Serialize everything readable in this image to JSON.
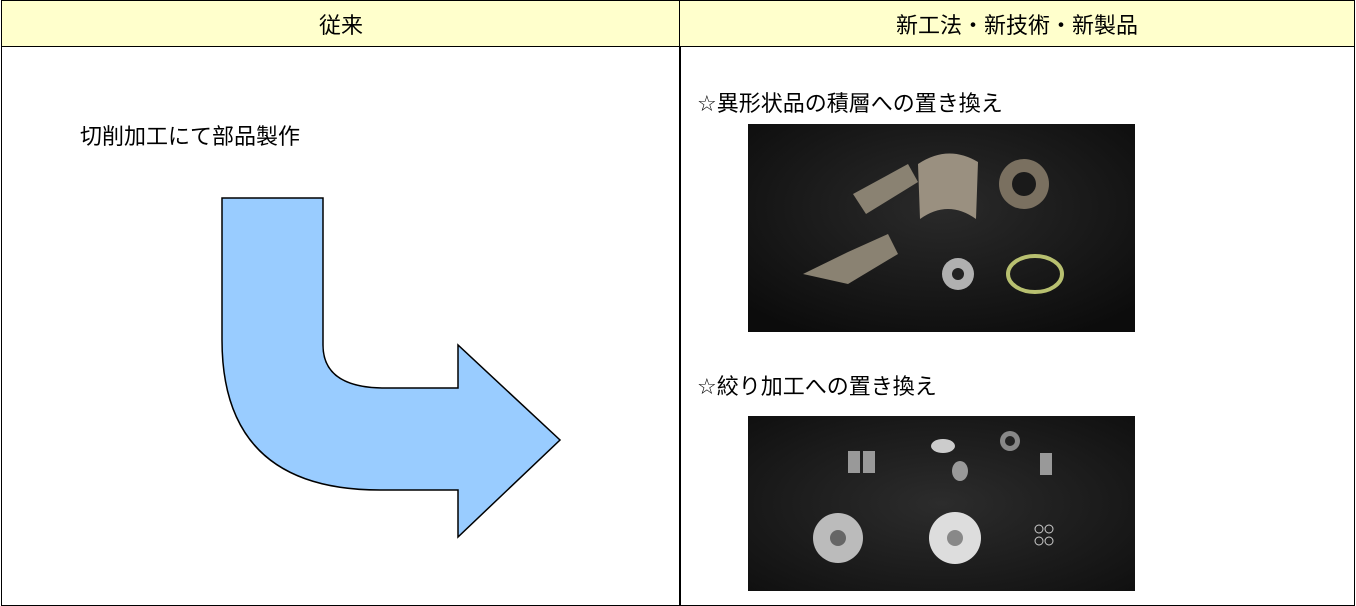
{
  "header": {
    "columns": [
      "従来",
      "新工法・新技術・新製品"
    ]
  },
  "left": {
    "text": "切削加工にて部品製作"
  },
  "right": {
    "items": [
      {
        "caption": "☆異形状品の積層への置き換え"
      },
      {
        "caption": "☆絞り加工への置き換え"
      }
    ]
  }
}
